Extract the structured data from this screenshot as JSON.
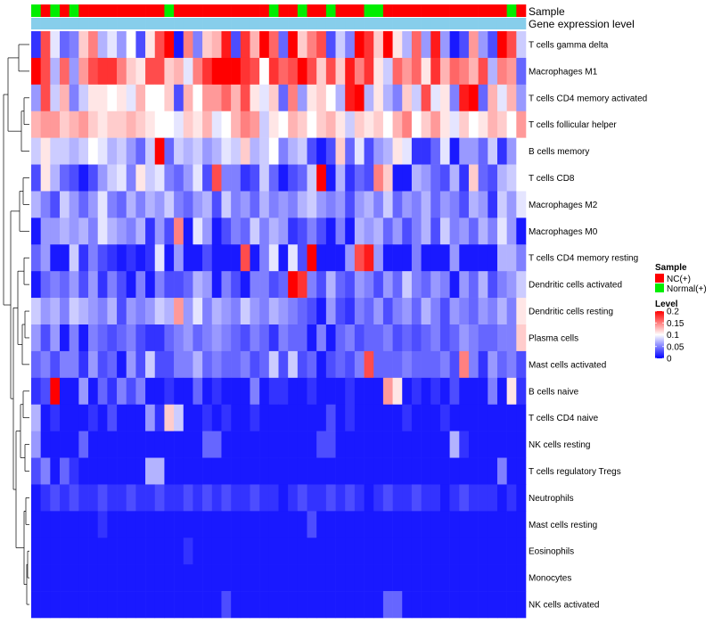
{
  "chart_data": {
    "type": "heatmap",
    "annotation_labels": [
      "Sample",
      "Gene expression level"
    ],
    "sample_groups": [
      "Normal(+)",
      "NC(+)",
      "Normal(+)",
      "NC(+)",
      "Normal(+)",
      "NC(+)",
      "NC(+)",
      "NC(+)",
      "NC(+)",
      "NC(+)",
      "NC(+)",
      "NC(+)",
      "NC(+)",
      "NC(+)",
      "Normal(+)",
      "NC(+)",
      "NC(+)",
      "NC(+)",
      "NC(+)",
      "NC(+)",
      "NC(+)",
      "NC(+)",
      "NC(+)",
      "NC(+)",
      "NC(+)",
      "Normal(+)",
      "NC(+)",
      "NC(+)",
      "Normal(+)",
      "NC(+)",
      "NC(+)",
      "Normal(+)",
      "NC(+)",
      "NC(+)",
      "NC(+)",
      "Normal(+)",
      "Normal(+)",
      "NC(+)",
      "NC(+)",
      "NC(+)",
      "NC(+)",
      "NC(+)",
      "NC(+)",
      "NC(+)",
      "NC(+)",
      "NC(+)",
      "NC(+)",
      "NC(+)",
      "NC(+)",
      "NC(+)",
      "Normal(+)",
      "NC(+)"
    ],
    "expression_level": [
      0.1,
      0.1,
      0.1,
      0.1,
      0.1,
      0.1,
      0.1,
      0.1,
      0.1,
      0.1,
      0.1,
      0.1,
      0.1,
      0.1,
      0.1,
      0.1,
      0.1,
      0.1,
      0.1,
      0.1,
      0.1,
      0.1,
      0.1,
      0.1,
      0.1,
      0.1,
      0.1,
      0.1,
      0.1,
      0.1,
      0.12,
      0.12,
      0.12,
      0.12,
      0.12,
      0.12,
      0.12,
      0.12,
      0.12,
      0.12,
      0.12,
      0.12,
      0.12,
      0.12,
      0.12,
      0.12,
      0.12,
      0.12,
      0.12,
      0.12,
      0.12,
      0.12
    ],
    "rows": [
      "T cells gamma delta",
      "Macrophages M1",
      "T cells CD4 memory activated",
      "T cells follicular helper",
      "B cells memory",
      "T cells CD8",
      "Macrophages M2",
      "Macrophages M0",
      "T cells CD4 memory resting",
      "Dendritic cells activated",
      "Dendritic cells resting",
      "Plasma cells",
      "Mast cells activated",
      "B cells naive",
      "T cells CD4 naive",
      "NK cells resting",
      "T cells regulatory  Tregs",
      "Neutrophils",
      "Mast cells resting",
      "Eosinophils",
      "Monocytes",
      "NK cells activated"
    ],
    "columns": 52,
    "values": [
      [
        0.02,
        0.17,
        0.09,
        0.04,
        0.05,
        0.12,
        0.15,
        0.07,
        0.09,
        0.06,
        0.1,
        0.03,
        0.11,
        0.17,
        0.2,
        0.01,
        0.15,
        0.05,
        0.12,
        0.13,
        0.19,
        0.03,
        0.18,
        0.13,
        0.21,
        0.16,
        0.04,
        0.2,
        0.12,
        0.15,
        0.17,
        0.03,
        0.08,
        0.05,
        0.2,
        0.18,
        0.12,
        0.21,
        0.11,
        0.07,
        0.16,
        0.06,
        0.19,
        0.06,
        0.01,
        0.03,
        0.14,
        0.06,
        0.03,
        0.2,
        0.17,
        0.08
      ],
      [
        0.21,
        0.17,
        0.07,
        0.16,
        0.06,
        0.14,
        0.17,
        0.18,
        0.18,
        0.15,
        0.12,
        0.11,
        0.17,
        0.17,
        0.12,
        0.13,
        0.09,
        0.15,
        0.18,
        0.21,
        0.21,
        0.21,
        0.18,
        0.17,
        0.1,
        0.18,
        0.16,
        0.17,
        0.21,
        0.17,
        0.12,
        0.17,
        0.12,
        0.19,
        0.15,
        0.18,
        0.11,
        0.08,
        0.16,
        0.14,
        0.16,
        0.11,
        0.18,
        0.13,
        0.16,
        0.15,
        0.13,
        0.17,
        0.07,
        0.15,
        0.14,
        0.04
      ],
      [
        0.06,
        0.17,
        0.08,
        0.13,
        0.05,
        0.08,
        0.11,
        0.11,
        0.1,
        0.11,
        0.09,
        0.13,
        0.1,
        0.1,
        0.12,
        0.03,
        0.13,
        0.1,
        0.14,
        0.14,
        0.16,
        0.13,
        0.17,
        0.11,
        0.09,
        0.12,
        0.04,
        0.15,
        0.06,
        0.11,
        0.12,
        0.1,
        0.07,
        0.19,
        0.21,
        0.07,
        0.11,
        0.07,
        0.05,
        0.12,
        0.08,
        0.17,
        0.09,
        0.11,
        0.05,
        0.19,
        0.2,
        0.04,
        0.13,
        0.09,
        0.13,
        0.06
      ],
      [
        0.13,
        0.14,
        0.14,
        0.12,
        0.13,
        0.14,
        0.12,
        0.11,
        0.12,
        0.12,
        0.13,
        0.12,
        0.11,
        0.1,
        0.1,
        0.09,
        0.12,
        0.11,
        0.13,
        0.09,
        0.1,
        0.13,
        0.15,
        0.14,
        0.08,
        0.11,
        0.1,
        0.13,
        0.12,
        0.1,
        0.12,
        0.13,
        0.11,
        0.08,
        0.12,
        0.11,
        0.12,
        0.1,
        0.13,
        0.15,
        0.1,
        0.12,
        0.14,
        0.11,
        0.09,
        0.12,
        0.1,
        0.11,
        0.13,
        0.12,
        0.1,
        0.14
      ],
      [
        0.08,
        0.11,
        0.08,
        0.08,
        0.07,
        0.08,
        0.1,
        0.09,
        0.07,
        0.08,
        0.06,
        0.04,
        0.08,
        0.21,
        0.04,
        0.08,
        0.07,
        0.08,
        0.06,
        0.07,
        0.09,
        0.08,
        0.12,
        0.07,
        0.08,
        0.1,
        0.05,
        0.07,
        0.08,
        0.03,
        0.01,
        0.03,
        0.12,
        0.04,
        0.09,
        0.03,
        0.06,
        0.07,
        0.11,
        0.09,
        0.02,
        0.02,
        0.04,
        0.09,
        0.01,
        0.06,
        0.06,
        0.04,
        0.08,
        0.02,
        0.06,
        0.1
      ],
      [
        0.03,
        0.11,
        0.07,
        0.04,
        0.03,
        0.01,
        0.03,
        0.06,
        0.08,
        0.09,
        0.05,
        0.11,
        0.08,
        0.09,
        0.05,
        0.04,
        0.06,
        0.09,
        0.03,
        0.17,
        0.05,
        0.05,
        0.02,
        0.03,
        0.08,
        0.04,
        0.01,
        0.03,
        0.04,
        0.08,
        0.2,
        0.01,
        0.07,
        0.02,
        0.04,
        0.03,
        0.15,
        0.12,
        0.01,
        0.01,
        0.07,
        0.06,
        0.04,
        0.03,
        0.07,
        0.02,
        0.12,
        0.04,
        0.03,
        0.07,
        0.08,
        0.1
      ],
      [
        0.07,
        0.05,
        0.03,
        0.08,
        0.06,
        0.04,
        0.06,
        0.09,
        0.05,
        0.04,
        0.07,
        0.05,
        0.07,
        0.06,
        0.08,
        0.05,
        0.04,
        0.06,
        0.07,
        0.03,
        0.08,
        0.05,
        0.06,
        0.04,
        0.07,
        0.05,
        0.06,
        0.05,
        0.07,
        0.08,
        0.06,
        0.05,
        0.06,
        0.03,
        0.06,
        0.07,
        0.05,
        0.08,
        0.04,
        0.06,
        0.05,
        0.07,
        0.04,
        0.06,
        0.05,
        0.03,
        0.07,
        0.06,
        0.02,
        0.08,
        0.06,
        0.09
      ],
      [
        0.01,
        0.06,
        0.06,
        0.07,
        0.06,
        0.07,
        0.05,
        0.09,
        0.07,
        0.06,
        0.05,
        0.07,
        0.02,
        0.06,
        0.03,
        0.15,
        0.01,
        0.09,
        0.06,
        0.01,
        0.03,
        0.05,
        0.04,
        0.08,
        0.05,
        0.07,
        0.06,
        0.02,
        0.03,
        0.05,
        0.03,
        0.01,
        0.05,
        0.01,
        0.07,
        0.06,
        0.07,
        0.04,
        0.06,
        0.03,
        0.05,
        0.07,
        0.03,
        0.08,
        0.05,
        0.06,
        0.04,
        0.07,
        0.05,
        0.09,
        0.06,
        0.01
      ],
      [
        0.04,
        0.06,
        0.01,
        0.01,
        0.08,
        0.02,
        0.05,
        0.03,
        0.02,
        0.01,
        0.02,
        0.01,
        0.02,
        0.09,
        0.01,
        0.06,
        0.01,
        0.01,
        0.03,
        0.01,
        0.01,
        0.01,
        0.17,
        0.01,
        0.05,
        0.09,
        0.01,
        0.09,
        0.03,
        0.21,
        0.01,
        0.01,
        0.01,
        0.06,
        0.17,
        0.19,
        0.06,
        0.01,
        0.01,
        0.01,
        0.05,
        0.01,
        0.01,
        0.01,
        0.06,
        0.01,
        0.01,
        0.01,
        0.01,
        0.07,
        0.07,
        0.05
      ],
      [
        0.01,
        0.04,
        0.05,
        0.04,
        0.06,
        0.03,
        0.06,
        0.02,
        0.05,
        0.03,
        0.01,
        0.05,
        0.01,
        0.05,
        0.03,
        0.03,
        0.04,
        0.07,
        0.06,
        0.01,
        0.05,
        0.03,
        0.01,
        0.05,
        0.05,
        0.03,
        0.04,
        0.2,
        0.18,
        0.05,
        0.03,
        0.07,
        0.04,
        0.03,
        0.06,
        0.05,
        0.03,
        0.06,
        0.04,
        0.08,
        0.05,
        0.04,
        0.06,
        0.05,
        0.01,
        0.06,
        0.04,
        0.07,
        0.03,
        0.05,
        0.06,
        0.08
      ],
      [
        0.08,
        0.06,
        0.07,
        0.05,
        0.08,
        0.07,
        0.06,
        0.05,
        0.07,
        0.03,
        0.06,
        0.05,
        0.06,
        0.08,
        0.07,
        0.14,
        0.06,
        0.09,
        0.05,
        0.07,
        0.06,
        0.05,
        0.08,
        0.06,
        0.05,
        0.07,
        0.06,
        0.05,
        0.04,
        0.03,
        0.01,
        0.06,
        0.03,
        0.02,
        0.05,
        0.04,
        0.06,
        0.03,
        0.05,
        0.06,
        0.04,
        0.07,
        0.05,
        0.03,
        0.06,
        0.05,
        0.04,
        0.06,
        0.05,
        0.07,
        0.05,
        0.11
      ],
      [
        0.06,
        0.03,
        0.06,
        0.01,
        0.05,
        0.01,
        0.05,
        0.04,
        0.03,
        0.04,
        0.05,
        0.03,
        0.02,
        0.02,
        0.04,
        0.05,
        0.06,
        0.04,
        0.05,
        0.06,
        0.05,
        0.04,
        0.03,
        0.05,
        0.04,
        0.02,
        0.05,
        0.04,
        0.04,
        0.01,
        0.05,
        0.01,
        0.04,
        0.05,
        0.03,
        0.04,
        0.04,
        0.05,
        0.03,
        0.04,
        0.03,
        0.04,
        0.05,
        0.03,
        0.04,
        0.06,
        0.05,
        0.04,
        0.04,
        0.05,
        0.05,
        0.12
      ],
      [
        0.04,
        0.05,
        0.03,
        0.05,
        0.05,
        0.02,
        0.06,
        0.03,
        0.04,
        0.01,
        0.06,
        0.03,
        0.08,
        0.03,
        0.03,
        0.05,
        0.05,
        0.07,
        0.04,
        0.05,
        0.04,
        0.04,
        0.05,
        0.03,
        0.04,
        0.08,
        0.03,
        0.08,
        0.03,
        0.04,
        0.01,
        0.03,
        0.04,
        0.03,
        0.05,
        0.17,
        0.04,
        0.04,
        0.04,
        0.05,
        0.04,
        0.04,
        0.04,
        0.05,
        0.03,
        0.15,
        0.05,
        0.02,
        0.06,
        0.04,
        0.05,
        0.03
      ],
      [
        0.02,
        0.03,
        0.21,
        0.01,
        0.01,
        0.06,
        0.01,
        0.04,
        0.02,
        0.05,
        0.03,
        0.05,
        0.01,
        0.01,
        0.02,
        0.01,
        0.01,
        0.04,
        0.01,
        0.02,
        0.01,
        0.01,
        0.01,
        0.05,
        0.01,
        0.02,
        0.02,
        0.01,
        0.01,
        0.02,
        0.01,
        0.01,
        0.01,
        0.02,
        0.01,
        0.01,
        0.01,
        0.14,
        0.11,
        0.01,
        0.02,
        0.01,
        0.02,
        0.01,
        0.03,
        0.01,
        0.01,
        0.01,
        0.05,
        0.01,
        0.11,
        0.02
      ],
      [
        0.07,
        0.01,
        0.02,
        0.01,
        0.01,
        0.01,
        0.02,
        0.01,
        0.03,
        0.01,
        0.01,
        0.01,
        0.06,
        0.02,
        0.12,
        0.08,
        0.01,
        0.01,
        0.02,
        0.01,
        0.02,
        0.01,
        0.01,
        0.02,
        0.01,
        0.01,
        0.01,
        0.01,
        0.01,
        0.01,
        0.01,
        0.03,
        0.01,
        0.02,
        0.01,
        0.01,
        0.01,
        0.01,
        0.01,
        0.02,
        0.01,
        0.01,
        0.01,
        0.02,
        0.01,
        0.01,
        0.01,
        0.01,
        0.01,
        0.01,
        0.01,
        0.01
      ],
      [
        0.06,
        0.01,
        0.01,
        0.01,
        0.01,
        0.04,
        0.01,
        0.01,
        0.01,
        0.01,
        0.01,
        0.01,
        0.01,
        0.01,
        0.01,
        0.01,
        0.01,
        0.01,
        0.04,
        0.04,
        0.01,
        0.01,
        0.01,
        0.01,
        0.01,
        0.01,
        0.01,
        0.01,
        0.01,
        0.01,
        0.03,
        0.03,
        0.01,
        0.01,
        0.01,
        0.01,
        0.01,
        0.01,
        0.01,
        0.01,
        0.01,
        0.01,
        0.01,
        0.01,
        0.07,
        0.02,
        0.01,
        0.01,
        0.01,
        0.01,
        0.01,
        0.01
      ],
      [
        0.03,
        0.05,
        0.01,
        0.04,
        0.02,
        0.01,
        0.01,
        0.01,
        0.01,
        0.01,
        0.01,
        0.01,
        0.07,
        0.07,
        0.01,
        0.01,
        0.01,
        0.01,
        0.01,
        0.01,
        0.01,
        0.01,
        0.01,
        0.01,
        0.01,
        0.01,
        0.01,
        0.01,
        0.01,
        0.01,
        0.01,
        0.01,
        0.01,
        0.01,
        0.01,
        0.01,
        0.01,
        0.01,
        0.01,
        0.01,
        0.01,
        0.01,
        0.01,
        0.01,
        0.01,
        0.01,
        0.01,
        0.01,
        0.01,
        0.05,
        0.01,
        0.01
      ],
      [
        0.01,
        0.02,
        0.03,
        0.02,
        0.03,
        0.02,
        0.02,
        0.03,
        0.02,
        0.02,
        0.03,
        0.02,
        0.02,
        0.03,
        0.02,
        0.02,
        0.03,
        0.02,
        0.03,
        0.02,
        0.03,
        0.02,
        0.02,
        0.03,
        0.02,
        0.02,
        0.01,
        0.02,
        0.03,
        0.02,
        0.02,
        0.03,
        0.02,
        0.03,
        0.02,
        0.01,
        0.02,
        0.03,
        0.02,
        0.02,
        0.03,
        0.02,
        0.02,
        0.01,
        0.02,
        0.03,
        0.02,
        0.02,
        0.02,
        0.01,
        0.02,
        0.01
      ],
      [
        0.01,
        0.01,
        0.01,
        0.01,
        0.01,
        0.01,
        0.01,
        0.02,
        0.01,
        0.01,
        0.01,
        0.01,
        0.01,
        0.01,
        0.01,
        0.01,
        0.01,
        0.01,
        0.01,
        0.01,
        0.01,
        0.01,
        0.01,
        0.01,
        0.01,
        0.01,
        0.01,
        0.01,
        0.01,
        0.03,
        0.01,
        0.01,
        0.01,
        0.01,
        0.01,
        0.01,
        0.01,
        0.01,
        0.01,
        0.01,
        0.01,
        0.01,
        0.01,
        0.01,
        0.01,
        0.01,
        0.01,
        0.01,
        0.01,
        0.01,
        0.01,
        0.01
      ],
      [
        0.01,
        0.01,
        0.01,
        0.01,
        0.01,
        0.01,
        0.01,
        0.01,
        0.01,
        0.01,
        0.01,
        0.01,
        0.01,
        0.01,
        0.01,
        0.01,
        0.02,
        0.01,
        0.01,
        0.01,
        0.01,
        0.01,
        0.01,
        0.01,
        0.01,
        0.01,
        0.01,
        0.01,
        0.01,
        0.01,
        0.01,
        0.01,
        0.01,
        0.01,
        0.01,
        0.01,
        0.01,
        0.01,
        0.01,
        0.01,
        0.01,
        0.01,
        0.01,
        0.01,
        0.01,
        0.01,
        0.01,
        0.01,
        0.01,
        0.01,
        0.01,
        0.01
      ],
      [
        0.01,
        0.01,
        0.01,
        0.01,
        0.01,
        0.01,
        0.01,
        0.01,
        0.01,
        0.01,
        0.01,
        0.01,
        0.01,
        0.01,
        0.01,
        0.01,
        0.01,
        0.01,
        0.01,
        0.01,
        0.01,
        0.01,
        0.01,
        0.01,
        0.01,
        0.01,
        0.01,
        0.01,
        0.01,
        0.01,
        0.01,
        0.01,
        0.01,
        0.01,
        0.01,
        0.01,
        0.01,
        0.01,
        0.01,
        0.01,
        0.01,
        0.01,
        0.01,
        0.01,
        0.01,
        0.01,
        0.01,
        0.01,
        0.01,
        0.01,
        0.01,
        0.01
      ],
      [
        0.01,
        0.01,
        0.01,
        0.01,
        0.01,
        0.01,
        0.01,
        0.01,
        0.01,
        0.01,
        0.01,
        0.01,
        0.01,
        0.01,
        0.01,
        0.01,
        0.01,
        0.01,
        0.01,
        0.01,
        0.03,
        0.01,
        0.01,
        0.01,
        0.01,
        0.01,
        0.01,
        0.01,
        0.01,
        0.01,
        0.01,
        0.01,
        0.01,
        0.01,
        0.01,
        0.01,
        0.01,
        0.04,
        0.04,
        0.01,
        0.01,
        0.01,
        0.01,
        0.01,
        0.01,
        0.01,
        0.01,
        0.01,
        0.01,
        0.01,
        0.01,
        0.01
      ]
    ],
    "color_scale": {
      "min": 0,
      "mid": 0.1,
      "max": 0.2,
      "low_color": "#0000ff",
      "mid_color": "#ffffff",
      "high_color": "#ff0000"
    },
    "legend": {
      "sample_title": "Sample",
      "sample_entries": [
        {
          "label": "NC(+)",
          "color": "#ff0000"
        },
        {
          "label": "Normal(+)",
          "color": "#00ee00"
        }
      ],
      "level_title": "Level",
      "level_ticks": [
        {
          "label": "0.2",
          "value": 0.2
        },
        {
          "label": "0.15",
          "value": 0.15
        },
        {
          "label": "0.1",
          "value": 0.1
        },
        {
          "label": "0.05",
          "value": 0.05
        },
        {
          "label": "0",
          "value": 0
        }
      ],
      "placement": "right"
    },
    "expression_color": "#87ceeb",
    "dendrogram": "row clustering tree on the left"
  }
}
